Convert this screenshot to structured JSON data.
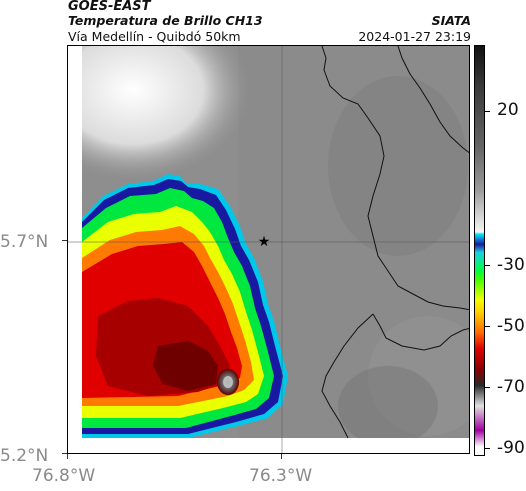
{
  "header": {
    "source": "GOES-EAST",
    "title": "Temperatura de Brillo CH13",
    "agency": "SIATA",
    "subtitle": "Vía Medellín - Quibdó 50km",
    "timestamp": "2024-01-27 23:19"
  },
  "map": {
    "lat_labels": [
      "5.7°N",
      "5.2°N"
    ],
    "lon_labels": [
      "76.8°W",
      "76.3°W"
    ],
    "marker": "star-icon",
    "storm_core_color": "#8a0000",
    "cold_top_color": "#e00000"
  },
  "colorbar": {
    "labels": [
      "20",
      "-30",
      "-50",
      "-70",
      "-90"
    ],
    "unit_hint": "brightness temperature"
  }
}
